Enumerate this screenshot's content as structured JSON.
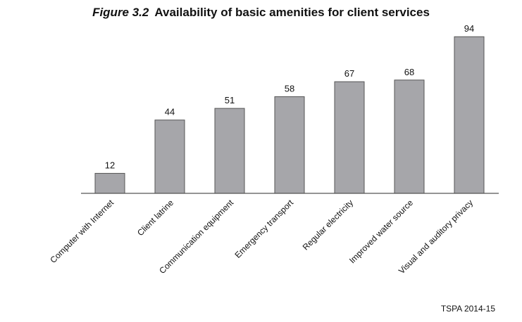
{
  "title_prefix": "Figure 3.2",
  "title": "Availability of basic amenities for client services",
  "source": "TSPA 2014-15",
  "chart_data": {
    "type": "bar",
    "categories": [
      "Computer with Internet",
      "Client latrine",
      "Communication equipment",
      "Emergency transport",
      "Regular electricity",
      "Improved water source",
      "Visual and auditory privacy"
    ],
    "values": [
      12,
      44,
      51,
      58,
      67,
      68,
      94
    ],
    "ylim": [
      0,
      100
    ],
    "grid": false,
    "legend": "none",
    "bar_color": "#a6a6aa",
    "bar_stroke": "#555555"
  }
}
